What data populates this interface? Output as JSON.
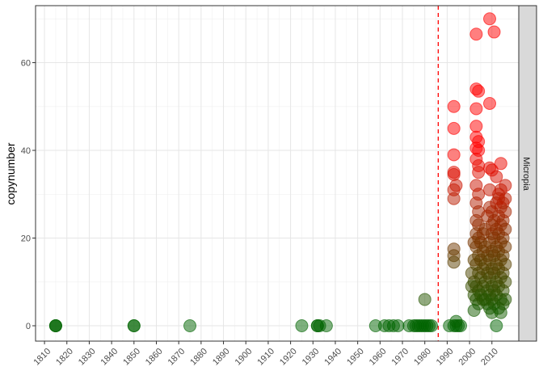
{
  "chart_data": {
    "type": "scatter",
    "title": "",
    "xlabel": "",
    "ylabel": "copynumber",
    "facet_label": "Micropia",
    "xlim": [
      1806,
      2022
    ],
    "ylim": [
      -3.5,
      73
    ],
    "x_ticks": [
      1810,
      1820,
      1830,
      1840,
      1850,
      1860,
      1870,
      1880,
      1890,
      1900,
      1910,
      1920,
      1930,
      1940,
      1950,
      1960,
      1970,
      1980,
      1990,
      2000,
      2010
    ],
    "y_ticks": [
      0,
      20,
      40,
      60
    ],
    "grid": true,
    "legend": "none",
    "vline": {
      "x": 1986,
      "color": "#ff0000",
      "style": "dashed"
    },
    "colors": {
      "low": "#006400",
      "high": "#ff0000",
      "vline": "#ff0000",
      "strip_bg": "#d9d9d9"
    },
    "points": [
      {
        "x": 1815,
        "y": 0
      },
      {
        "x": 1815,
        "y": 0
      },
      {
        "x": 1815,
        "y": 0
      },
      {
        "x": 1850,
        "y": 0
      },
      {
        "x": 1850,
        "y": 0
      },
      {
        "x": 1875,
        "y": 0
      },
      {
        "x": 1925,
        "y": 0
      },
      {
        "x": 1932,
        "y": 0
      },
      {
        "x": 1932,
        "y": 0
      },
      {
        "x": 1933,
        "y": 0
      },
      {
        "x": 1936,
        "y": 0
      },
      {
        "x": 1958,
        "y": 0
      },
      {
        "x": 1962,
        "y": 0
      },
      {
        "x": 1964,
        "y": 0
      },
      {
        "x": 1966,
        "y": 0
      },
      {
        "x": 1968,
        "y": 0
      },
      {
        "x": 1973,
        "y": 0
      },
      {
        "x": 1975,
        "y": 0
      },
      {
        "x": 1976,
        "y": 0
      },
      {
        "x": 1977,
        "y": 0
      },
      {
        "x": 1978,
        "y": 0
      },
      {
        "x": 1979,
        "y": 0
      },
      {
        "x": 1980,
        "y": 0
      },
      {
        "x": 1981,
        "y": 0
      },
      {
        "x": 1982,
        "y": 0
      },
      {
        "x": 1983,
        "y": 0
      },
      {
        "x": 1980,
        "y": 6
      },
      {
        "x": 1991,
        "y": 0
      },
      {
        "x": 1993,
        "y": 0
      },
      {
        "x": 1994,
        "y": 0
      },
      {
        "x": 1995,
        "y": 0
      },
      {
        "x": 1996,
        "y": 0
      },
      {
        "x": 1994,
        "y": 1
      },
      {
        "x": 1993,
        "y": 50
      },
      {
        "x": 1993,
        "y": 45
      },
      {
        "x": 1993,
        "y": 39
      },
      {
        "x": 1993,
        "y": 35
      },
      {
        "x": 1993,
        "y": 34.5
      },
      {
        "x": 1994,
        "y": 32
      },
      {
        "x": 1993,
        "y": 31
      },
      {
        "x": 1993,
        "y": 29
      },
      {
        "x": 1993,
        "y": 17.5
      },
      {
        "x": 1993,
        "y": 16
      },
      {
        "x": 1993,
        "y": 14.5
      },
      {
        "x": 2003,
        "y": 66.5
      },
      {
        "x": 2009,
        "y": 70
      },
      {
        "x": 2011,
        "y": 67
      },
      {
        "x": 2003,
        "y": 54
      },
      {
        "x": 2004,
        "y": 53.5
      },
      {
        "x": 2009,
        "y": 50.7
      },
      {
        "x": 2003,
        "y": 49.5
      },
      {
        "x": 2003,
        "y": 45.5
      },
      {
        "x": 2003,
        "y": 43
      },
      {
        "x": 2004,
        "y": 42
      },
      {
        "x": 2003,
        "y": 40.5
      },
      {
        "x": 2004,
        "y": 40
      },
      {
        "x": 2003,
        "y": 38
      },
      {
        "x": 2004,
        "y": 36.5
      },
      {
        "x": 2004,
        "y": 35
      },
      {
        "x": 2009,
        "y": 36
      },
      {
        "x": 2010,
        "y": 35.5
      },
      {
        "x": 2012,
        "y": 34
      },
      {
        "x": 2014,
        "y": 37
      },
      {
        "x": 2016,
        "y": 32
      },
      {
        "x": 2013,
        "y": 30
      },
      {
        "x": 2003,
        "y": 32
      },
      {
        "x": 2004,
        "y": 30
      },
      {
        "x": 2003,
        "y": 28
      },
      {
        "x": 2004,
        "y": 26
      },
      {
        "x": 2003,
        "y": 24
      },
      {
        "x": 2004,
        "y": 23
      },
      {
        "x": 2003,
        "y": 21
      },
      {
        "x": 2004,
        "y": 20
      },
      {
        "x": 2003,
        "y": 18
      },
      {
        "x": 2004,
        "y": 16
      },
      {
        "x": 2003,
        "y": 14
      },
      {
        "x": 2004,
        "y": 12
      },
      {
        "x": 2002,
        "y": 10
      },
      {
        "x": 2003,
        "y": 9
      },
      {
        "x": 2004,
        "y": 8
      },
      {
        "x": 2002,
        "y": 7
      },
      {
        "x": 2003,
        "y": 6
      },
      {
        "x": 2004,
        "y": 5
      },
      {
        "x": 2002,
        "y": 3.5
      },
      {
        "x": 2001,
        "y": 12
      },
      {
        "x": 2001,
        "y": 9
      },
      {
        "x": 2005,
        "y": 11
      },
      {
        "x": 2005,
        "y": 15
      },
      {
        "x": 2005,
        "y": 19
      },
      {
        "x": 2006,
        "y": 6
      },
      {
        "x": 2006,
        "y": 9
      },
      {
        "x": 2006,
        "y": 13
      },
      {
        "x": 2006,
        "y": 17
      },
      {
        "x": 2007,
        "y": 10
      },
      {
        "x": 2007,
        "y": 14
      },
      {
        "x": 2007,
        "y": 22
      },
      {
        "x": 2008,
        "y": 5
      },
      {
        "x": 2008,
        "y": 8
      },
      {
        "x": 2008,
        "y": 12
      },
      {
        "x": 2008,
        "y": 16
      },
      {
        "x": 2008,
        "y": 25
      },
      {
        "x": 2009,
        "y": 4
      },
      {
        "x": 2009,
        "y": 7
      },
      {
        "x": 2009,
        "y": 11
      },
      {
        "x": 2009,
        "y": 15
      },
      {
        "x": 2009,
        "y": 19
      },
      {
        "x": 2009,
        "y": 27
      },
      {
        "x": 2009,
        "y": 31
      },
      {
        "x": 2010,
        "y": 3
      },
      {
        "x": 2010,
        "y": 6
      },
      {
        "x": 2010,
        "y": 9
      },
      {
        "x": 2010,
        "y": 13
      },
      {
        "x": 2010,
        "y": 17
      },
      {
        "x": 2010,
        "y": 21
      },
      {
        "x": 2010,
        "y": 26
      },
      {
        "x": 2011,
        "y": 5
      },
      {
        "x": 2011,
        "y": 8
      },
      {
        "x": 2011,
        "y": 12
      },
      {
        "x": 2011,
        "y": 16
      },
      {
        "x": 2011,
        "y": 20
      },
      {
        "x": 2011,
        "y": 24
      },
      {
        "x": 2012,
        "y": 0
      },
      {
        "x": 2012,
        "y": 7
      },
      {
        "x": 2012,
        "y": 10
      },
      {
        "x": 2012,
        "y": 14
      },
      {
        "x": 2012,
        "y": 18
      },
      {
        "x": 2012,
        "y": 22
      },
      {
        "x": 2012,
        "y": 28
      },
      {
        "x": 2013,
        "y": 4
      },
      {
        "x": 2013,
        "y": 9
      },
      {
        "x": 2013,
        "y": 13
      },
      {
        "x": 2013,
        "y": 17
      },
      {
        "x": 2013,
        "y": 21
      },
      {
        "x": 2013,
        "y": 25
      },
      {
        "x": 2014,
        "y": 3
      },
      {
        "x": 2014,
        "y": 6
      },
      {
        "x": 2014,
        "y": 11
      },
      {
        "x": 2014,
        "y": 15
      },
      {
        "x": 2014,
        "y": 19
      },
      {
        "x": 2014,
        "y": 23
      },
      {
        "x": 2014,
        "y": 27
      },
      {
        "x": 2014,
        "y": 31
      },
      {
        "x": 2015,
        "y": 8
      },
      {
        "x": 2015,
        "y": 12
      },
      {
        "x": 2015,
        "y": 16
      },
      {
        "x": 2015,
        "y": 20
      },
      {
        "x": 2015,
        "y": 24
      },
      {
        "x": 2015,
        "y": 28
      },
      {
        "x": 2016,
        "y": 6
      },
      {
        "x": 2016,
        "y": 10
      },
      {
        "x": 2016,
        "y": 14
      },
      {
        "x": 2016,
        "y": 18
      },
      {
        "x": 2016,
        "y": 22
      },
      {
        "x": 2016,
        "y": 26
      },
      {
        "x": 2016,
        "y": 29
      },
      {
        "x": 2002,
        "y": 15
      },
      {
        "x": 2002,
        "y": 19
      },
      {
        "x": 2005,
        "y": 7
      },
      {
        "x": 2007,
        "y": 6
      },
      {
        "x": 2007,
        "y": 18
      },
      {
        "x": 2006,
        "y": 21
      },
      {
        "x": 2010,
        "y": 23
      },
      {
        "x": 2013,
        "y": 29
      },
      {
        "x": 2015,
        "y": 5
      }
    ]
  }
}
